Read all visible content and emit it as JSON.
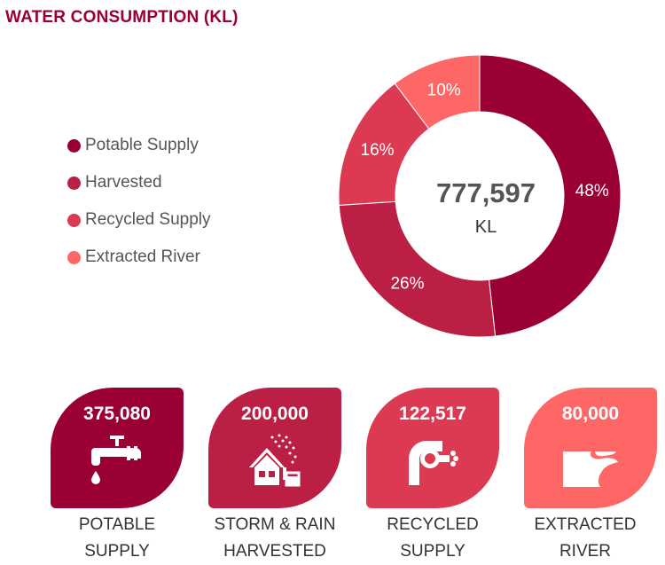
{
  "title": "WATER CONSUMPTION (KL)",
  "legend": [
    {
      "label": "Potable Supply",
      "color": "#9b0034"
    },
    {
      "label": "Harvested",
      "color": "#bb1f43"
    },
    {
      "label": "Recycled Supply",
      "color": "#db3a52"
    },
    {
      "label": "Extracted River",
      "color": "#ff6767"
    }
  ],
  "chart_data": {
    "type": "pie",
    "title": "WATER CONSUMPTION (KL)",
    "center_value": "777,597",
    "center_unit": "KL",
    "slices": [
      {
        "label": "Potable Supply",
        "value": 375080,
        "percent_label": "48%",
        "color": "#9b0034"
      },
      {
        "label": "Harvested",
        "value": 200000,
        "percent_label": "26%",
        "color": "#bb1f43"
      },
      {
        "label": "Recycled Supply",
        "value": 122517,
        "percent_label": "16%",
        "color": "#db3a52"
      },
      {
        "label": "Extracted River",
        "value": 80000,
        "percent_label": "10%",
        "color": "#ff6767"
      }
    ],
    "legend_position": "left"
  },
  "cards": [
    {
      "value": "375,080",
      "caption_line1": "POTABLE",
      "caption_line2": "SUPPLY",
      "color": "#9b0034",
      "icon": "faucet-icon"
    },
    {
      "value": "200,000",
      "caption_line1": "STORM & RAIN",
      "caption_line2": "HARVESTED",
      "color": "#bb1f43",
      "icon": "rain-harvest-icon"
    },
    {
      "value": "122,517",
      "caption_line1": "RECYCLED",
      "caption_line2": "SUPPLY",
      "color": "#db3a52",
      "icon": "recycle-pipe-icon"
    },
    {
      "value": "80,000",
      "caption_line1": "EXTRACTED",
      "caption_line2": "RIVER",
      "color": "#ff6767",
      "icon": "river-icon"
    }
  ]
}
